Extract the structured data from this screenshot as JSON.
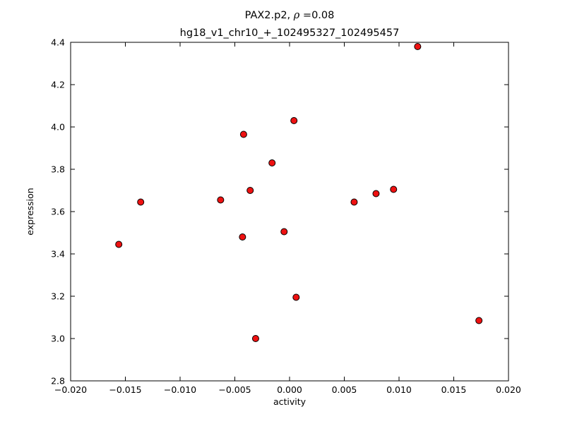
{
  "chart_data": {
    "type": "scatter",
    "title_prefix": "PAX2.p2, ",
    "title_rho": "ρ",
    "title_suffix": " =0.08",
    "subtitle": "hg18_v1_chr10_+_102495327_102495457",
    "xlabel": "activity",
    "ylabel": "expression",
    "xlim": [
      -0.02,
      0.02
    ],
    "ylim": [
      2.8,
      4.4
    ],
    "xtick_values": [
      -0.02,
      -0.015,
      -0.01,
      -0.005,
      0.0,
      0.005,
      0.01,
      0.015,
      0.02
    ],
    "xtick_labels": [
      "−0.020",
      "−0.015",
      "−0.010",
      "−0.005",
      "0.000",
      "0.005",
      "0.010",
      "0.015",
      "0.020"
    ],
    "ytick_values": [
      2.8,
      3.0,
      3.2,
      3.4,
      3.6,
      3.8,
      4.0,
      4.2,
      4.4
    ],
    "ytick_labels": [
      "2.8",
      "3.0",
      "3.2",
      "3.4",
      "3.6",
      "3.8",
      "4.0",
      "4.2",
      "4.4"
    ],
    "grid": false,
    "legend": "none",
    "marker_color": "#ee1111",
    "marker_edge_color": "#000000",
    "points": [
      [
        -0.0156,
        3.445
      ],
      [
        -0.0136,
        3.645
      ],
      [
        -0.0063,
        3.655
      ],
      [
        -0.0043,
        3.48
      ],
      [
        -0.0042,
        3.965
      ],
      [
        -0.0036,
        3.7
      ],
      [
        -0.0031,
        3.0
      ],
      [
        -0.0016,
        3.83
      ],
      [
        -0.0005,
        3.505
      ],
      [
        0.0004,
        4.03
      ],
      [
        0.0006,
        3.195
      ],
      [
        0.0059,
        3.645
      ],
      [
        0.0079,
        3.685
      ],
      [
        0.0095,
        3.705
      ],
      [
        0.0117,
        4.38
      ],
      [
        0.0173,
        3.085
      ]
    ]
  }
}
